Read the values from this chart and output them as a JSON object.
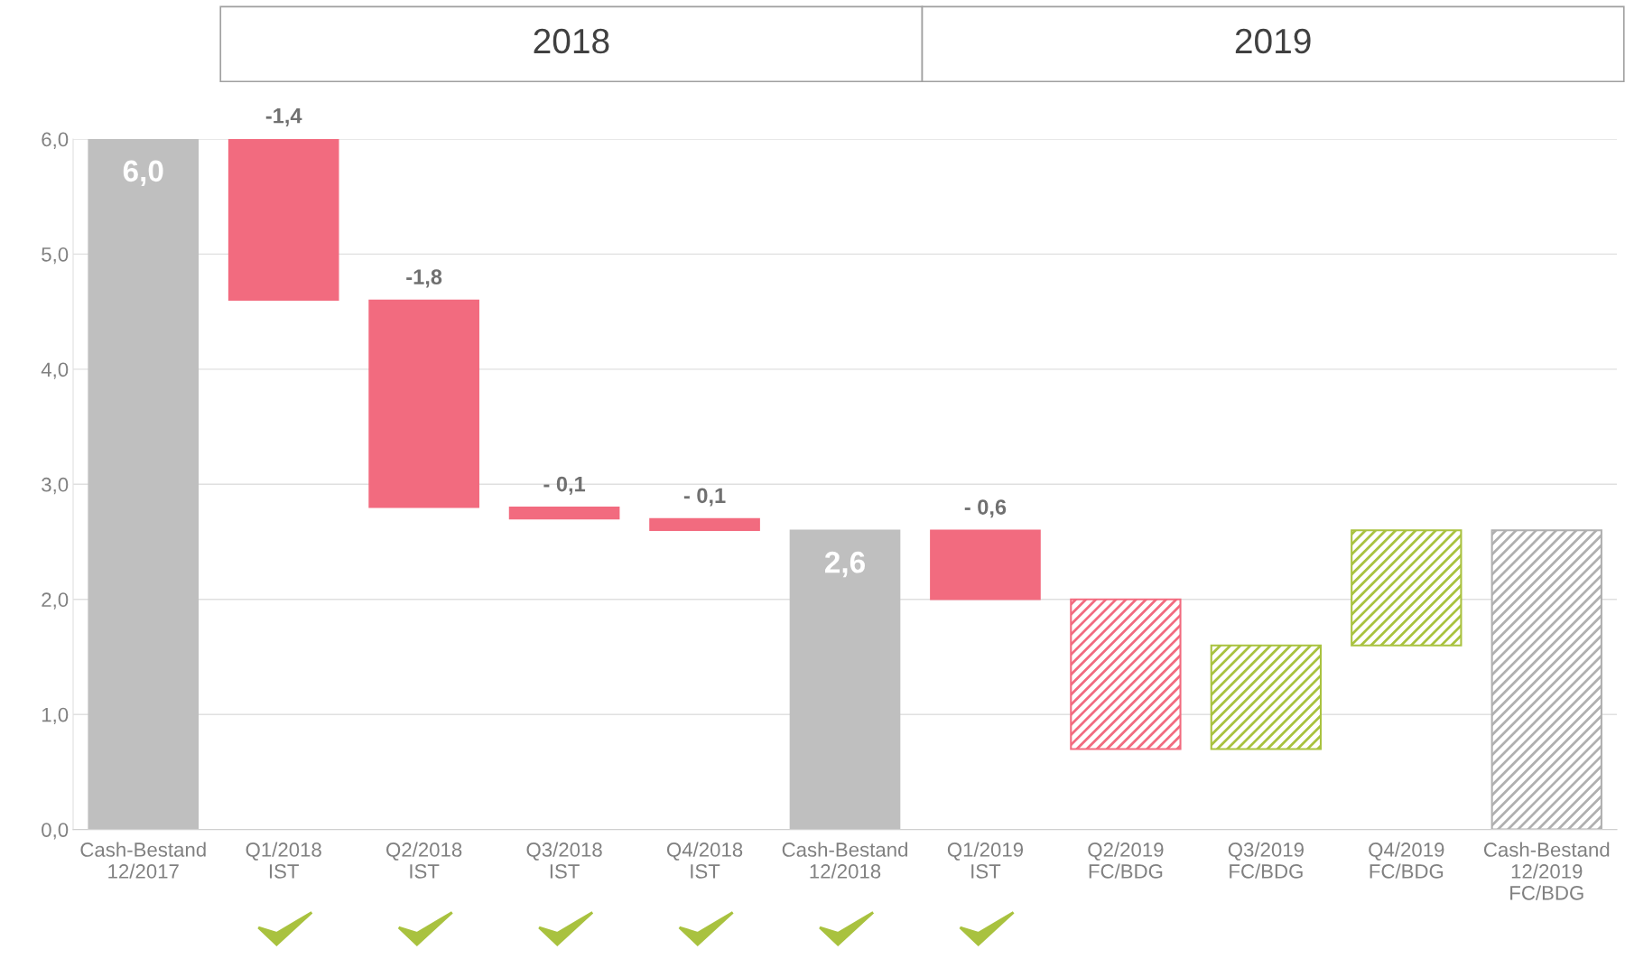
{
  "chart_data": {
    "type": "bar",
    "categories": [
      "Cash-Bestand\n12/2017",
      "Q1/2018\nIST",
      "Q2/2018\nIST",
      "Q3/2018\nIST",
      "Q4/2018\nIST",
      "Cash-Bestand\n12/2018",
      "Q1/2019\nIST",
      "Q2/2019\nFC/BDG",
      "Q3/2019\nFC/BDG",
      "Q4/2019\nFC/BDG",
      "Cash-Bestand\n12/2019\nFC/BDG"
    ],
    "series": [
      {
        "base": [
          0,
          6.0,
          4.6,
          2.8,
          2.7,
          0,
          2.6,
          null,
          null,
          null,
          null
        ],
        "values": [
          6.0,
          -1.4,
          -1.8,
          -0.1,
          -0.1,
          2.6,
          -0.6,
          null,
          null,
          null,
          null
        ],
        "colors": [
          "#bfbfbf",
          "#f26b7f",
          "#f26b7f",
          "#f26b7f",
          "#f26b7f",
          "#bfbfbf",
          "#f26b7f",
          null,
          null,
          null,
          null
        ]
      },
      {
        "base": [
          null,
          null,
          null,
          null,
          null,
          null,
          null,
          2.0,
          0.7,
          1.6,
          0
        ],
        "values": [
          null,
          null,
          null,
          null,
          null,
          null,
          null,
          -1.3,
          0.9,
          1.0,
          2.6
        ],
        "colors": [
          null,
          null,
          null,
          null,
          null,
          null,
          null,
          "#f26b7f",
          "#a9c23f",
          "#a9c23f",
          "#b0b0b0"
        ]
      }
    ],
    "value_labels": [
      "6,0",
      "-1,4",
      "-1,8",
      "- 0,1",
      "- 0,1",
      "2,6",
      "- 0,6",
      null,
      null,
      null,
      null
    ],
    "annotations": [
      "2018",
      "2019"
    ],
    "ylim": [
      0,
      6.0
    ],
    "yticks": [
      {
        "value": 0,
        "label": "0,0"
      },
      {
        "value": 1,
        "label": "1,0"
      },
      {
        "value": 2,
        "label": "2,0"
      },
      {
        "value": 3,
        "label": "3,0"
      },
      {
        "value": 4,
        "label": "4,0"
      },
      {
        "value": 5,
        "label": "5,0"
      },
      {
        "value": 6,
        "label": "6,0"
      }
    ],
    "grid": "y"
  }
}
